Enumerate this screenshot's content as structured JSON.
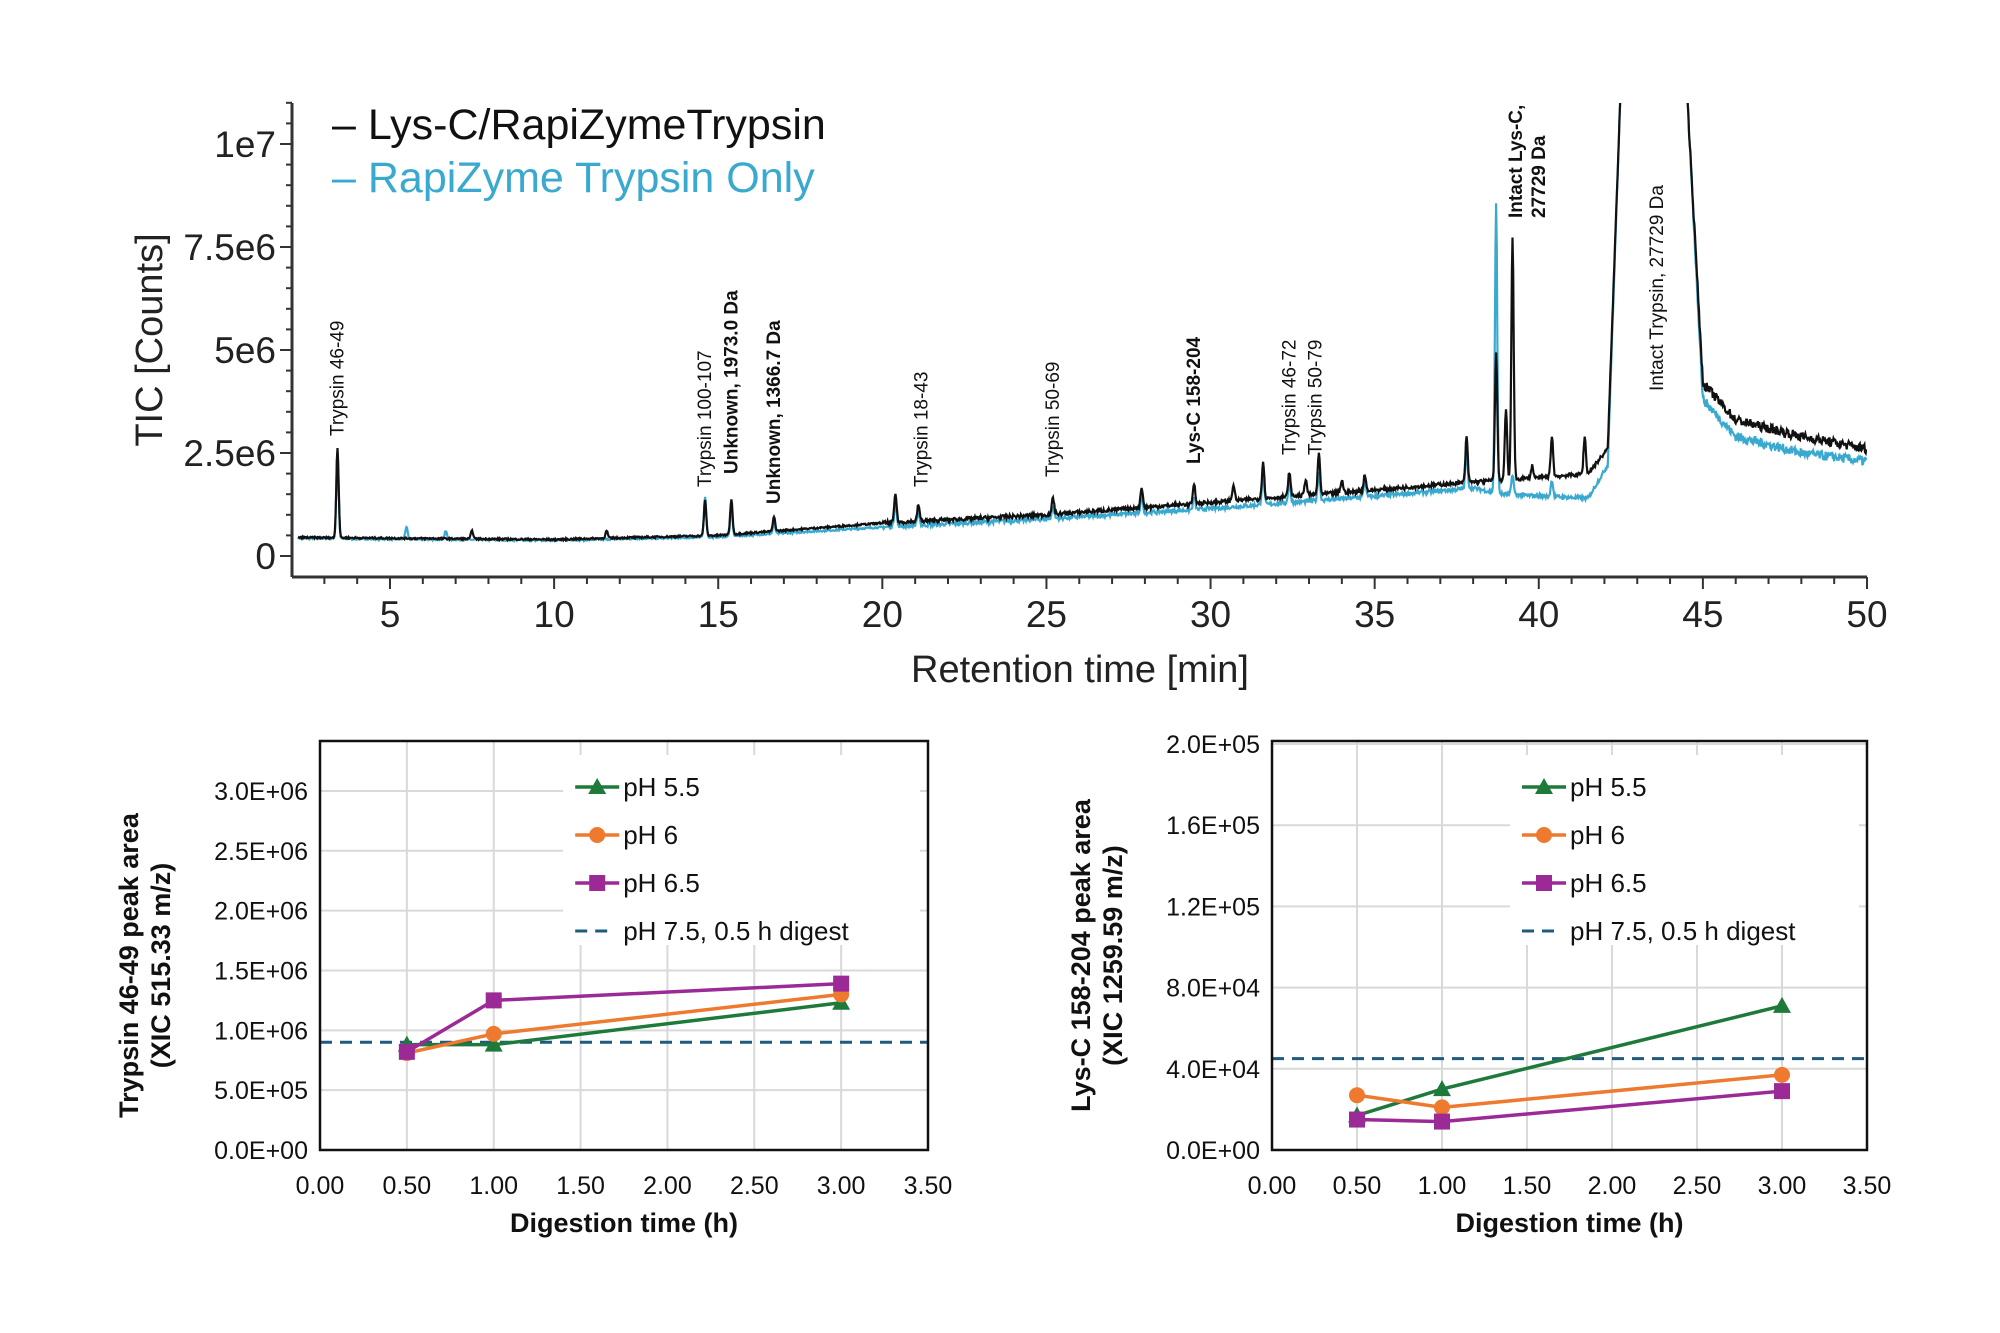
{
  "chart_data": [
    {
      "type": "line",
      "xlabel": "Retention time [min]",
      "ylabel": "TIC [Counts]",
      "xlim": [
        2.2,
        50
      ],
      "ylim": [
        -500000.0,
        11000000.0
      ],
      "xticks": [
        5,
        10,
        15,
        20,
        25,
        30,
        35,
        40,
        45,
        50
      ],
      "xtick_labels": [
        "5",
        "10",
        "15",
        "20",
        "25",
        "30",
        "35",
        "40",
        "45",
        "50"
      ],
      "yticks": [
        0,
        2500000,
        5000000,
        7500000,
        10000000
      ],
      "ytick_labels": [
        "0",
        "2.5e6",
        "5e6",
        "7.5e6",
        "1e7"
      ],
      "legend_placement": "top-left",
      "series": [
        {
          "name": "Lys-C/RapiZymeTrypsin",
          "legend_label": "– Lys-C/RapiZymeTrypsin",
          "color": "#111111",
          "baseline": [
            [
              2.2,
              450000
            ],
            [
              10,
              400000
            ],
            [
              15,
              500000
            ],
            [
              20,
              800000
            ],
            [
              25,
              1000000
            ],
            [
              30,
              1300000
            ],
            [
              35,
              1600000
            ],
            [
              38,
              1800000
            ],
            [
              40,
              1900000
            ],
            [
              41.5,
              2000000
            ],
            [
              42.1,
              2600000
            ],
            [
              42.5,
              11500000
            ],
            [
              44.5,
              11500000
            ],
            [
              45,
              4200000
            ],
            [
              46,
              3300000
            ],
            [
              48,
              2900000
            ],
            [
              50,
              2600000
            ]
          ],
          "peaks": [
            [
              3.4,
              2200000
            ],
            [
              7.5,
              200000
            ],
            [
              11.6,
              180000
            ],
            [
              14.6,
              850000
            ],
            [
              15.4,
              850000
            ],
            [
              16.7,
              350000
            ],
            [
              20.4,
              700000
            ],
            [
              21.1,
              400000
            ],
            [
              25.2,
              400000
            ],
            [
              27.9,
              500000
            ],
            [
              29.5,
              450000
            ],
            [
              30.7,
              400000
            ],
            [
              31.6,
              900000
            ],
            [
              32.4,
              600000
            ],
            [
              32.9,
              400000
            ],
            [
              33.3,
              1000000
            ],
            [
              34.0,
              300000
            ],
            [
              34.7,
              400000
            ],
            [
              37.8,
              1100000
            ],
            [
              38.7,
              3100000
            ],
            [
              39.0,
              1700000
            ],
            [
              39.2,
              5900000
            ],
            [
              39.8,
              300000
            ],
            [
              40.4,
              1000000
            ],
            [
              41.4,
              900000
            ]
          ]
        },
        {
          "name": "RapiZyme Trypsin Only",
          "legend_label": "– RapiZyme Trypsin Only",
          "color": "#3aa9cf",
          "baseline": [
            [
              2.2,
              430000
            ],
            [
              10,
              380000
            ],
            [
              15,
              460000
            ],
            [
              20,
              700000
            ],
            [
              25,
              900000
            ],
            [
              30,
              1150000
            ],
            [
              35,
              1450000
            ],
            [
              38,
              1650000
            ],
            [
              38.9,
              1500000
            ],
            [
              41.5,
              1400000
            ],
            [
              42.1,
              2200000
            ],
            [
              42.5,
              11500000
            ],
            [
              44.5,
              11500000
            ],
            [
              45,
              3800000
            ],
            [
              46,
              2900000
            ],
            [
              48,
              2500000
            ],
            [
              50,
              2300000
            ]
          ],
          "peaks": [
            [
              3.4,
              2100000
            ],
            [
              5.5,
              300000
            ],
            [
              6.7,
              200000
            ],
            [
              14.6,
              1000000
            ],
            [
              15.4,
              700000
            ],
            [
              16.7,
              250000
            ],
            [
              20.4,
              600000
            ],
            [
              21.1,
              300000
            ],
            [
              25.2,
              300000
            ],
            [
              27.9,
              400000
            ],
            [
              29.5,
              300000
            ],
            [
              31.6,
              800000
            ],
            [
              32.4,
              500000
            ],
            [
              33.3,
              700000
            ],
            [
              34.7,
              400000
            ],
            [
              37.8,
              900000
            ],
            [
              38.7,
              7000000
            ],
            [
              39.2,
              500000
            ],
            [
              40.4,
              400000
            ]
          ]
        }
      ],
      "annotations": [
        {
          "text": "Trypsin 46-49",
          "x": 3.4,
          "bold": false
        },
        {
          "text": "Trypsin 100-107",
          "x": 14.6,
          "bold": false
        },
        {
          "text": "Unknown, 1973.0 Da",
          "x": 15.4,
          "bold": true
        },
        {
          "text": "Unknown, 1366.7 Da",
          "x": 16.7,
          "bold": true
        },
        {
          "text": "Trypsin 18-43",
          "x": 21.2,
          "bold": false
        },
        {
          "text": "Trypsin 50-69",
          "x": 25.2,
          "bold": false
        },
        {
          "text": "Lys-C 158-204",
          "x": 29.5,
          "bold": true
        },
        {
          "text": "Trypsin 46-72",
          "x": 32.4,
          "bold": false
        },
        {
          "text": "Trypsin 50-79",
          "x": 33.2,
          "bold": false
        },
        {
          "text": "Intact Lys-C,",
          "text2": "27729 Da",
          "x": 39.3,
          "bold": true
        },
        {
          "text": "Intact Trypsin, 27729 Da",
          "x": 43.6,
          "bold": false
        }
      ]
    },
    {
      "type": "line",
      "xlabel": "Digestion time (h)",
      "ylabel": "Trypsin 46-49 peak area",
      "ylabel2": "(XIC 515.33 m/z)",
      "xlim": [
        0,
        3.5
      ],
      "ylim": [
        0,
        3200000
      ],
      "grid": true,
      "xtick_labels": [
        "0.00",
        "0.50",
        "1.00",
        "1.50",
        "2.00",
        "2.50",
        "3.00",
        "3.50"
      ],
      "ytick_labels": [
        "0.0E+00",
        "5.0E+05",
        "1.0E+06",
        "1.5E+06",
        "2.0E+06",
        "2.5E+06",
        "3.0E+06"
      ],
      "legend_placement": "top-right",
      "x": [
        0.5,
        1.0,
        3.0
      ],
      "series": [
        {
          "name": "pH 5.5",
          "color": "#1e7a3a",
          "marker": "triangle",
          "values": [
            880000,
            880000,
            1230000
          ]
        },
        {
          "name": "pH 6",
          "color": "#ee7a30",
          "marker": "circle",
          "values": [
            810000,
            970000,
            1300000
          ]
        },
        {
          "name": "pH 6.5",
          "color": "#9c2a96",
          "marker": "square",
          "values": [
            820000,
            1250000,
            1390000
          ]
        }
      ],
      "reference": {
        "name": "pH 7.5, 0.5 h digest",
        "color": "#1f5a80",
        "style": "dashed",
        "value": 900000
      }
    },
    {
      "type": "line",
      "xlabel": "Digestion time (h)",
      "ylabel": "Lys-C 158-204 peak area",
      "ylabel2": "(XIC 1259.59 m/z)",
      "xlim": [
        0,
        3.5
      ],
      "ylim": [
        0,
        200000
      ],
      "grid": true,
      "xtick_labels": [
        "0.00",
        "0.50",
        "1.00",
        "1.50",
        "2.00",
        "2.50",
        "3.00",
        "3.50"
      ],
      "ytick_labels": [
        "0.0E+00",
        "4.0E+04",
        "8.0E+04",
        "1.2E+05",
        "1.6E+05",
        "2.0E+05"
      ],
      "legend_placement": "top-right",
      "x": [
        0.5,
        1.0,
        3.0
      ],
      "series": [
        {
          "name": "pH 5.5",
          "color": "#1e7a3a",
          "marker": "triangle",
          "values": [
            17000,
            30000,
            71000
          ]
        },
        {
          "name": "pH 6",
          "color": "#ee7a30",
          "marker": "circle",
          "values": [
            27000,
            21000,
            37000
          ]
        },
        {
          "name": "pH 6.5",
          "color": "#9c2a96",
          "marker": "square",
          "values": [
            15000,
            14000,
            29000
          ]
        }
      ],
      "reference": {
        "name": "pH 7.5, 0.5 h digest",
        "color": "#1f5a80",
        "style": "dashed",
        "value": 45000
      }
    }
  ]
}
